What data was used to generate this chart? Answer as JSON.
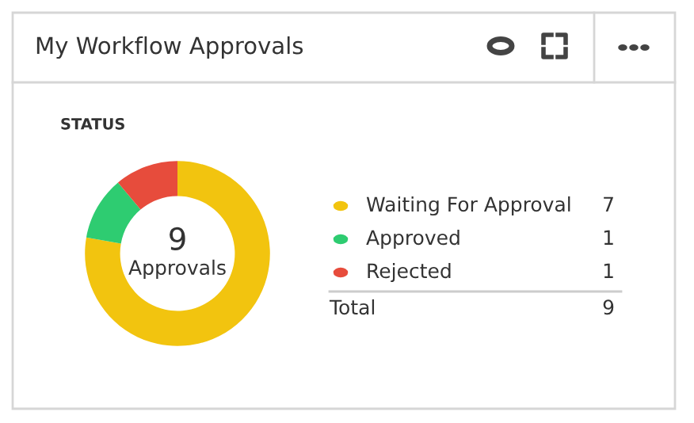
{
  "chart_data": {
    "type": "donut",
    "title": "My Workflow Approvals",
    "subtitle": "STATUS",
    "categories": [
      "Waiting For Approval",
      "Approved",
      "Rejected"
    ],
    "values": [
      7,
      1,
      1
    ],
    "colors": [
      "#f2c40f",
      "#2ecc71",
      "#e74c3c"
    ],
    "data_labels": true,
    "legend": "right",
    "totals": [
      "9"
    ],
    "annotations": [
      "Approvals",
      "Total"
    ]
  }
}
